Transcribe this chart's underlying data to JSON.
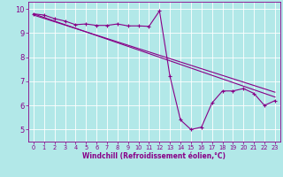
{
  "xlabel": "Windchill (Refroidissement éolien,°C)",
  "bg_color": "#b2e8e8",
  "line_color": "#880088",
  "grid_color": "#ffffff",
  "xlim": [
    -0.5,
    23.5
  ],
  "ylim": [
    4.5,
    10.3
  ],
  "yticks": [
    5,
    6,
    7,
    8,
    9,
    10
  ],
  "xticks": [
    0,
    1,
    2,
    3,
    4,
    5,
    6,
    7,
    8,
    9,
    10,
    11,
    12,
    13,
    14,
    15,
    16,
    17,
    18,
    19,
    20,
    21,
    22,
    23
  ],
  "line1_x": [
    0,
    1,
    2,
    3,
    4,
    5,
    6,
    7,
    8,
    9,
    10,
    11,
    12,
    13,
    14,
    15,
    16,
    17,
    18,
    19,
    20,
    21,
    22,
    23
  ],
  "line1_y": [
    9.8,
    9.75,
    9.6,
    9.5,
    9.35,
    9.38,
    9.32,
    9.32,
    9.38,
    9.3,
    9.3,
    9.28,
    9.92,
    7.2,
    5.4,
    5.0,
    5.1,
    6.1,
    6.6,
    6.6,
    6.7,
    6.5,
    6.0,
    6.2
  ],
  "line2_x": [
    0,
    23
  ],
  "line2_y": [
    9.8,
    6.35
  ],
  "line3_x": [
    0,
    23
  ],
  "line3_y": [
    9.75,
    6.55
  ],
  "lw": 0.8,
  "marker_size": 3.0,
  "xlabel_fontsize": 5.5,
  "tick_fontsize_x": 4.8,
  "tick_fontsize_y": 6.0
}
